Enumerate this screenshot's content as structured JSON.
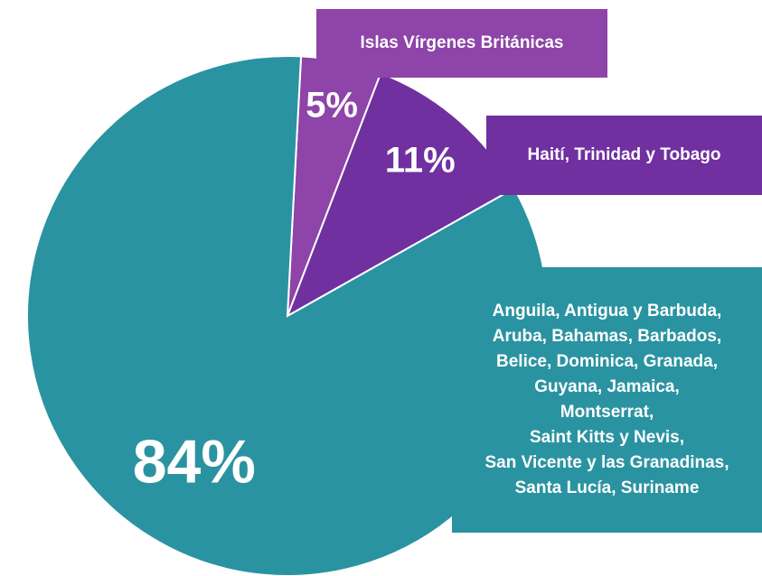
{
  "chart_data": {
    "type": "pie",
    "categories": [
      "Islas Vírgenes Británicas",
      "Haití, Trinidad y Tobago",
      "Anguila, Antigua y Barbuda,\nAruba, Bahamas, Barbados,\nBelice, Dominica, Granada,\nGuyana, Jamaica,\nMontserrat,\nSaint Kitts y Nevis,\nSan Vicente y las Granadinas,\nSanta Lucía, Suriname"
    ],
    "values": [
      5,
      11,
      84
    ],
    "value_labels": [
      "5%",
      "11%",
      "84%"
    ],
    "colors": [
      "#8e44a8",
      "#7030a0",
      "#2a93a1"
    ]
  }
}
